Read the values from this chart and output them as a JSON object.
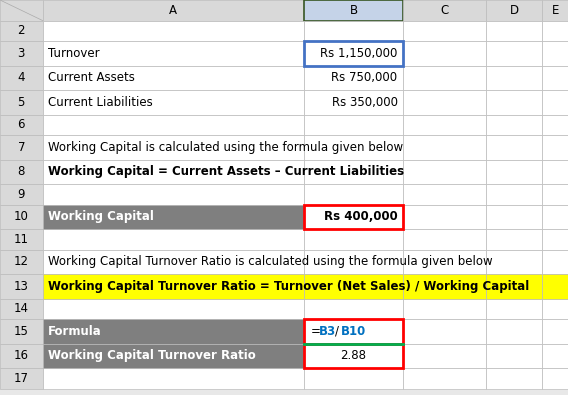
{
  "bg_color": "#E8E8E8",
  "white": "#FFFFFF",
  "gray_cell": "#7F7F7F",
  "yellow_bg": "#FFFF00",
  "red_border": "#FF0000",
  "blue_border": "#4472C4",
  "green_border": "#00B050",
  "dark_green_border": "#375623",
  "black": "#000000",
  "col_header_bg": "#D9D9D9",
  "col_labels": [
    "A",
    "B",
    "C",
    "D",
    "E"
  ],
  "row_labels": [
    "2",
    "3",
    "4",
    "5",
    "6",
    "7",
    "8",
    "9",
    "10",
    "11",
    "12",
    "13",
    "14",
    "15",
    "16",
    "17"
  ]
}
